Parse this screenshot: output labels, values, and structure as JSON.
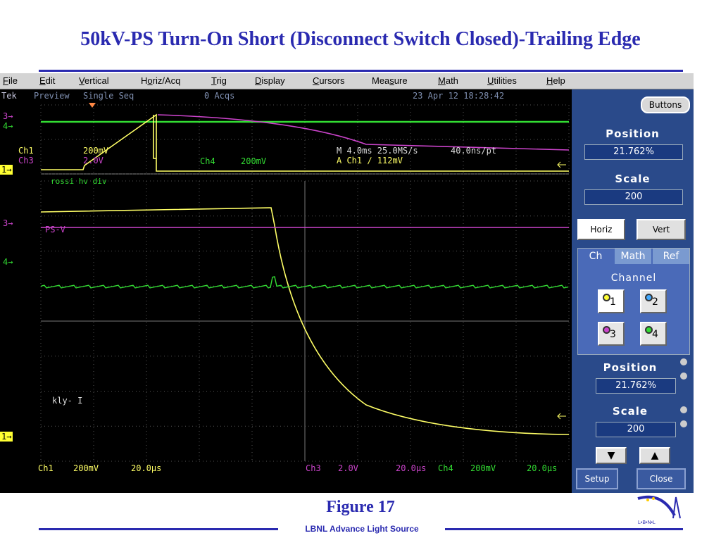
{
  "slide": {
    "title": "50kV-PS Turn-On Short (Disconnect Switch Closed)-Trailing Edge",
    "figure_caption": "Figure 17",
    "footer": "LBNL Advance Light Source",
    "logo_text": "L•B•N•L"
  },
  "menu": [
    {
      "label": "File",
      "ul": "F",
      "rest": "ile"
    },
    {
      "label": "Edit",
      "ul": "E",
      "rest": "dit"
    },
    {
      "label": "Vertical",
      "ul": "V",
      "rest": "ertical"
    },
    {
      "label": "Horiz/Acq",
      "pre": "H",
      "ul": "o",
      "rest": "riz/Acq"
    },
    {
      "label": "Trig",
      "ul": "T",
      "rest": "rig"
    },
    {
      "label": "Display",
      "ul": "D",
      "rest": "isplay"
    },
    {
      "label": "Cursors",
      "ul": "C",
      "rest": "ursors"
    },
    {
      "label": "Measure",
      "pre": "Mea",
      "ul": "s",
      "rest": "ure"
    },
    {
      "label": "Math",
      "ul": "M",
      "rest": "ath"
    },
    {
      "label": "Utilities",
      "ul": "U",
      "rest": "tilities"
    },
    {
      "label": "Help",
      "ul": "H",
      "rest": "elp"
    }
  ],
  "status": {
    "brand": "Tek",
    "mode": "Preview",
    "acq_mode": "Single Seq",
    "acqs": "0 Acqs",
    "datetime": "23 Apr 12 18:28:42"
  },
  "zoom_readout": {
    "ch1": "Ch1",
    "ch1_scale": "200mV",
    "ch3": "Ch3",
    "ch3_scale": "2.0V",
    "ch4": "Ch4",
    "ch4_scale": "200mV",
    "horiz": "M 4.0ms 25.0MS/s",
    "pt": "40.0ns/pt",
    "trig": "A  Ch1  ∕  112mV"
  },
  "trace_labels": {
    "upper": "rossi hv div",
    "ps": "PS-V",
    "kly": "kly- I"
  },
  "markers": {
    "m1": "1→",
    "m3": "3→",
    "m4": "4→"
  },
  "bottom_readout": {
    "ch1": "Ch1",
    "ch1_scale": "200mV",
    "ch1_time": "20.0µs",
    "ch3": "Ch3",
    "ch3_scale": "2.0V",
    "ch3_time": "20.0µs",
    "ch4": "Ch4",
    "ch4_scale": "200mV",
    "ch4_time": "20.0µs"
  },
  "panel": {
    "buttons_label": "Buttons",
    "position_label": "Position",
    "position_value": "21.762%",
    "scale_label": "Scale",
    "scale_value": "200",
    "horiz_label": "Horiz",
    "vert_label": "Vert",
    "tab_ch": "Ch",
    "tab_math": "Math",
    "tab_ref": "Ref",
    "channel_label": "Channel",
    "ch_buttons": [
      "1",
      "2",
      "3",
      "4"
    ],
    "position2_label": "Position",
    "position2_value": "21.762%",
    "scale2_label": "Scale",
    "scale2_value": "200",
    "setup_label": "Setup",
    "close_label": "Close"
  },
  "colors": {
    "ch1": "#ffff66",
    "ch3": "#cc44cc",
    "ch4": "#33dd33",
    "grid": "#555555",
    "title_blue": "#2a2ab0"
  }
}
